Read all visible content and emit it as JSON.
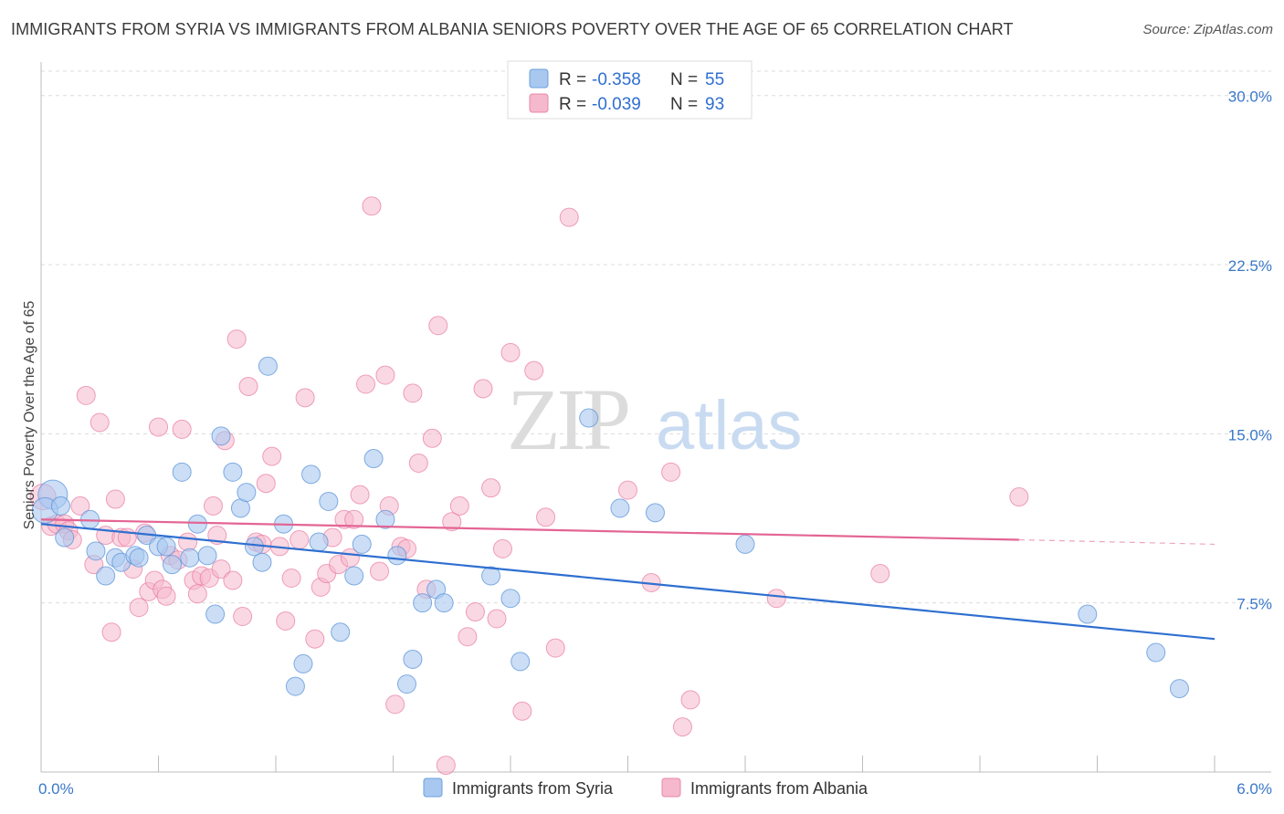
{
  "header": {
    "title": "IMMIGRANTS FROM SYRIA VS IMMIGRANTS FROM ALBANIA SENIORS POVERTY OVER THE AGE OF 65 CORRELATION CHART",
    "source": "Source: ZipAtlas.com"
  },
  "watermark": {
    "zip": "ZIP",
    "atlas": "atlas"
  },
  "legend": {
    "rows": [
      {
        "r_label": "R =",
        "r_value": "-0.358",
        "n_label": "N =",
        "n_value": "55",
        "color": "#a8c8f0"
      },
      {
        "r_label": "R =",
        "r_value": "-0.039",
        "n_label": "N =",
        "n_value": "93",
        "color": "#f5b8cc"
      }
    ]
  },
  "bottom_legend": {
    "syria": "Immigrants from Syria",
    "albania": "Immigrants from Albania"
  },
  "chart_data": {
    "type": "scatter",
    "ylabel": "Seniors Poverty Over the Age of 65",
    "xlim": [
      0,
      6
    ],
    "ylim": [
      0,
      31
    ],
    "yticks": [
      7.5,
      15.0,
      22.5,
      30.0
    ],
    "ytick_labels": [
      "7.5%",
      "15.0%",
      "22.5%",
      "30.0%"
    ],
    "xtick_labels": [
      "0.0%",
      "6.0%"
    ],
    "grid": true,
    "colors": {
      "syria": "#5b93d8",
      "syria_fill": "#a8c8f0",
      "albania": "#e8799f",
      "albania_fill": "#f5b8cc",
      "syria_line": "#2f6fd0",
      "albania_line": "#e36593"
    },
    "series": [
      {
        "name": "Immigrants from Syria",
        "trend": {
          "x0": 0,
          "y0": 11.0,
          "x1": 6,
          "y1": 5.9
        },
        "points": [
          [
            0.06,
            12.3,
            16
          ],
          [
            0.02,
            11.6,
            14
          ],
          [
            0.1,
            11.8,
            10
          ],
          [
            0.12,
            10.4,
            10
          ],
          [
            0.25,
            11.2,
            10
          ],
          [
            0.28,
            9.8,
            10
          ],
          [
            0.33,
            8.7,
            10
          ],
          [
            0.38,
            9.5,
            10
          ],
          [
            0.41,
            9.3,
            10
          ],
          [
            0.48,
            9.6,
            10
          ],
          [
            0.5,
            9.5,
            10
          ],
          [
            0.54,
            10.5,
            10
          ],
          [
            0.6,
            10.0,
            10
          ],
          [
            0.64,
            10.0,
            10
          ],
          [
            0.67,
            9.2,
            10
          ],
          [
            0.72,
            13.3,
            10
          ],
          [
            0.76,
            9.5,
            10
          ],
          [
            0.8,
            11.0,
            10
          ],
          [
            0.85,
            9.6,
            10
          ],
          [
            0.89,
            7.0,
            10
          ],
          [
            0.92,
            14.9,
            10
          ],
          [
            0.98,
            13.3,
            10
          ],
          [
            1.02,
            11.7,
            10
          ],
          [
            1.05,
            12.4,
            10
          ],
          [
            1.09,
            10.0,
            10
          ],
          [
            1.13,
            9.3,
            10
          ],
          [
            1.16,
            18.0,
            10
          ],
          [
            1.24,
            11.0,
            10
          ],
          [
            1.3,
            3.8,
            10
          ],
          [
            1.34,
            4.8,
            10
          ],
          [
            1.38,
            13.2,
            10
          ],
          [
            1.42,
            10.2,
            10
          ],
          [
            1.47,
            12.0,
            10
          ],
          [
            1.53,
            6.2,
            10
          ],
          [
            1.6,
            8.7,
            10
          ],
          [
            1.64,
            10.1,
            10
          ],
          [
            1.7,
            13.9,
            10
          ],
          [
            1.76,
            11.2,
            10
          ],
          [
            1.82,
            9.6,
            10
          ],
          [
            1.87,
            3.9,
            10
          ],
          [
            1.9,
            5.0,
            10
          ],
          [
            1.95,
            7.5,
            10
          ],
          [
            2.02,
            8.1,
            10
          ],
          [
            2.06,
            7.5,
            10
          ],
          [
            2.3,
            8.7,
            10
          ],
          [
            2.4,
            7.7,
            10
          ],
          [
            2.45,
            4.9,
            10
          ],
          [
            2.8,
            15.7,
            10
          ],
          [
            2.96,
            11.7,
            10
          ],
          [
            3.14,
            11.5,
            10
          ],
          [
            3.21,
            12.3,
            0
          ],
          [
            3.6,
            10.1,
            10
          ],
          [
            5.35,
            7.0,
            10
          ],
          [
            5.7,
            5.3,
            10
          ],
          [
            5.82,
            3.7,
            10
          ]
        ]
      },
      {
        "name": "Immigrants from Albania",
        "trend": {
          "x0": 0,
          "y0": 11.2,
          "x1": 5.0,
          "y1": 10.3,
          "dash_x1": 6,
          "dash_y1": 10.1
        },
        "points": [
          [
            0.01,
            12.2,
            14
          ],
          [
            0.05,
            10.9,
            10
          ],
          [
            0.08,
            11.0,
            10
          ],
          [
            0.12,
            11.0,
            10
          ],
          [
            0.14,
            10.7,
            10
          ],
          [
            0.16,
            10.3,
            10
          ],
          [
            0.2,
            11.8,
            10
          ],
          [
            0.23,
            16.7,
            10
          ],
          [
            0.27,
            9.2,
            10
          ],
          [
            0.3,
            15.5,
            10
          ],
          [
            0.33,
            10.5,
            10
          ],
          [
            0.36,
            6.2,
            10
          ],
          [
            0.38,
            12.1,
            10
          ],
          [
            0.41,
            10.4,
            10
          ],
          [
            0.44,
            10.4,
            10
          ],
          [
            0.47,
            9.0,
            10
          ],
          [
            0.5,
            7.3,
            10
          ],
          [
            0.53,
            10.6,
            10
          ],
          [
            0.55,
            8.0,
            10
          ],
          [
            0.58,
            8.5,
            10
          ],
          [
            0.6,
            15.3,
            10
          ],
          [
            0.62,
            8.1,
            10
          ],
          [
            0.64,
            7.8,
            10
          ],
          [
            0.66,
            9.6,
            10
          ],
          [
            0.7,
            9.4,
            10
          ],
          [
            0.72,
            15.2,
            10
          ],
          [
            0.75,
            10.2,
            10
          ],
          [
            0.78,
            8.5,
            10
          ],
          [
            0.8,
            7.9,
            10
          ],
          [
            0.82,
            8.7,
            10
          ],
          [
            0.86,
            8.6,
            10
          ],
          [
            0.88,
            11.8,
            10
          ],
          [
            0.9,
            10.5,
            10
          ],
          [
            0.92,
            9.0,
            10
          ],
          [
            0.94,
            14.7,
            10
          ],
          [
            0.98,
            8.5,
            10
          ],
          [
            1.0,
            19.2,
            10
          ],
          [
            1.03,
            6.9,
            10
          ],
          [
            1.06,
            17.1,
            10
          ],
          [
            1.1,
            10.2,
            10
          ],
          [
            1.13,
            10.1,
            10
          ],
          [
            1.15,
            12.8,
            10
          ],
          [
            1.18,
            14.0,
            10
          ],
          [
            1.22,
            10.0,
            10
          ],
          [
            1.25,
            6.7,
            10
          ],
          [
            1.28,
            8.6,
            10
          ],
          [
            1.32,
            10.3,
            10
          ],
          [
            1.35,
            16.6,
            10
          ],
          [
            1.4,
            5.9,
            10
          ],
          [
            1.43,
            8.2,
            10
          ],
          [
            1.46,
            8.8,
            10
          ],
          [
            1.49,
            10.4,
            10
          ],
          [
            1.52,
            9.2,
            10
          ],
          [
            1.55,
            11.2,
            10
          ],
          [
            1.58,
            9.5,
            10
          ],
          [
            1.6,
            11.2,
            10
          ],
          [
            1.63,
            12.3,
            10
          ],
          [
            1.66,
            17.2,
            10
          ],
          [
            1.69,
            25.1,
            10
          ],
          [
            1.73,
            8.9,
            10
          ],
          [
            1.76,
            17.6,
            10
          ],
          [
            1.78,
            11.8,
            10
          ],
          [
            1.81,
            3.0,
            10
          ],
          [
            1.84,
            10.0,
            10
          ],
          [
            1.87,
            9.9,
            10
          ],
          [
            1.9,
            16.8,
            10
          ],
          [
            1.93,
            13.7,
            10
          ],
          [
            1.97,
            8.1,
            10
          ],
          [
            2.0,
            14.8,
            10
          ],
          [
            2.03,
            19.8,
            10
          ],
          [
            2.07,
            0.3,
            10
          ],
          [
            2.1,
            11.1,
            10
          ],
          [
            2.14,
            11.8,
            10
          ],
          [
            2.18,
            6.0,
            10
          ],
          [
            2.22,
            7.1,
            10
          ],
          [
            2.26,
            17.0,
            10
          ],
          [
            2.3,
            12.6,
            10
          ],
          [
            2.33,
            6.8,
            10
          ],
          [
            2.36,
            9.9,
            10
          ],
          [
            2.4,
            18.6,
            10
          ],
          [
            2.46,
            2.7,
            10
          ],
          [
            2.52,
            17.8,
            10
          ],
          [
            2.58,
            11.3,
            10
          ],
          [
            2.63,
            5.5,
            10
          ],
          [
            2.7,
            24.6,
            10
          ],
          [
            3.0,
            12.5,
            10
          ],
          [
            3.12,
            8.4,
            10
          ],
          [
            3.22,
            13.3,
            10
          ],
          [
            3.28,
            2.0,
            10
          ],
          [
            3.32,
            3.2,
            10
          ],
          [
            3.76,
            7.7,
            10
          ],
          [
            4.29,
            8.8,
            10
          ],
          [
            5.0,
            12.2,
            10
          ]
        ]
      }
    ]
  }
}
